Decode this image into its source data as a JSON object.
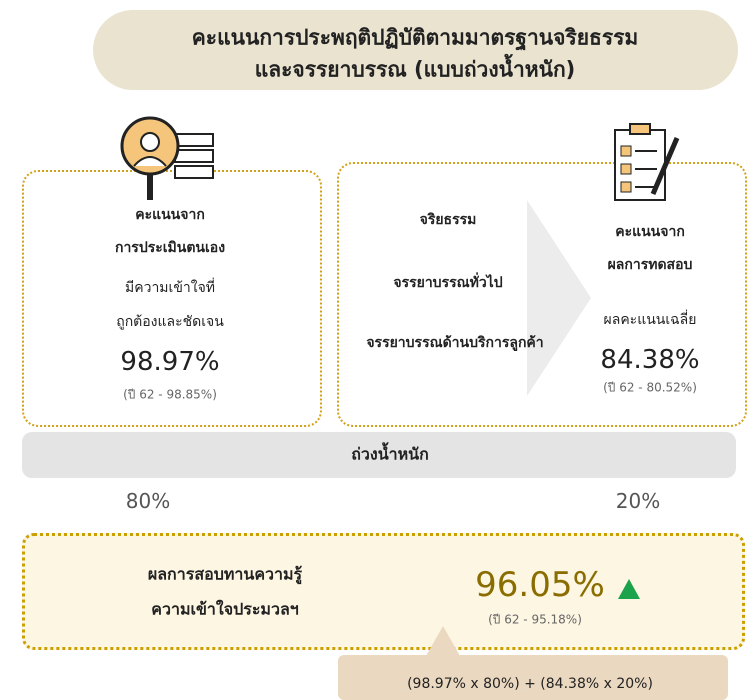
{
  "title": {
    "lines": [
      "คะแนนการประพฤติปฏิบัติตามมาตรฐานจริยธรรม",
      "และจรรยาบรรณ  (แบบถ่วงน้ำหนัก)"
    ]
  },
  "self_assessment": {
    "heading": [
      "คะแนนจาก",
      "การประเมินตนเอง"
    ],
    "note": [
      "มีความเข้าใจที่",
      "ถูกต้องและชัดเจน"
    ],
    "score": "98.97%",
    "previous": "(ปี 62 - 98.85%)"
  },
  "topics": [
    "จริยธรรม",
    "จรรยาบรรณทั่วไป",
    "จรรยาบรรณด้านบริการลูกค้า"
  ],
  "test": {
    "heading": [
      "คะแนนจาก",
      "ผลการทดสอบ"
    ],
    "note": "ผลคะแนนเฉลี่ย",
    "score": "84.38%",
    "previous": "(ปี 62 - 80.52%)"
  },
  "weighting": {
    "label": "ถ่วงน้ำหนัก",
    "left": "80%",
    "right": "20%"
  },
  "result": {
    "lines": [
      "ผลการสอบทานความรู้",
      "ความเข้าใจประมวลฯ"
    ],
    "score": "96.05%",
    "previous": "(ปี 62 - 95.18%)"
  },
  "formula": "(98.97% x 80%) + (84.38% x 20%)"
}
